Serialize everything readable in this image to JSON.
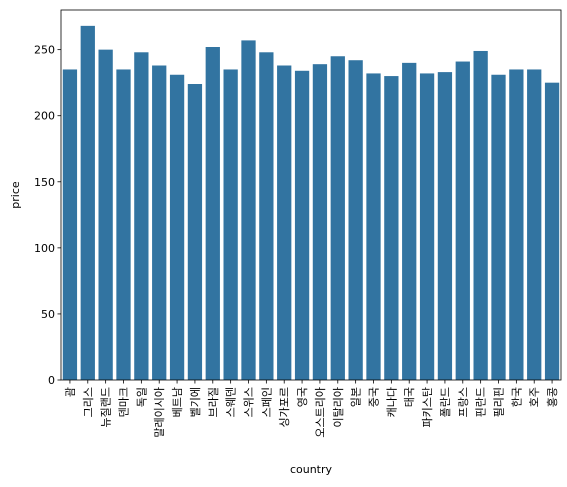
{
  "chart_data": {
    "type": "bar",
    "xlabel": "country",
    "ylabel": "price",
    "categories": [
      "괌",
      "그리스",
      "뉴질랜드",
      "덴마크",
      "독일",
      "말레이시아",
      "베트남",
      "벨기에",
      "브라질",
      "스웨덴",
      "스위스",
      "스페인",
      "싱가포르",
      "영국",
      "오스트리아",
      "이탈리아",
      "일본",
      "중국",
      "캐나다",
      "태국",
      "파키스탄",
      "폴란드",
      "프랑스",
      "핀란드",
      "필리핀",
      "한국",
      "호주",
      "홍콩"
    ],
    "values": [
      235,
      268,
      250,
      235,
      248,
      238,
      231,
      224,
      252,
      235,
      257,
      248,
      238,
      234,
      239,
      245,
      242,
      232,
      230,
      240,
      232,
      233,
      241,
      249,
      231,
      235,
      235,
      225
    ],
    "ylim": [
      0,
      280
    ],
    "yticks": [
      0,
      50,
      100,
      150,
      200,
      250
    ],
    "bar_color": "#3274a1",
    "grid": false
  }
}
